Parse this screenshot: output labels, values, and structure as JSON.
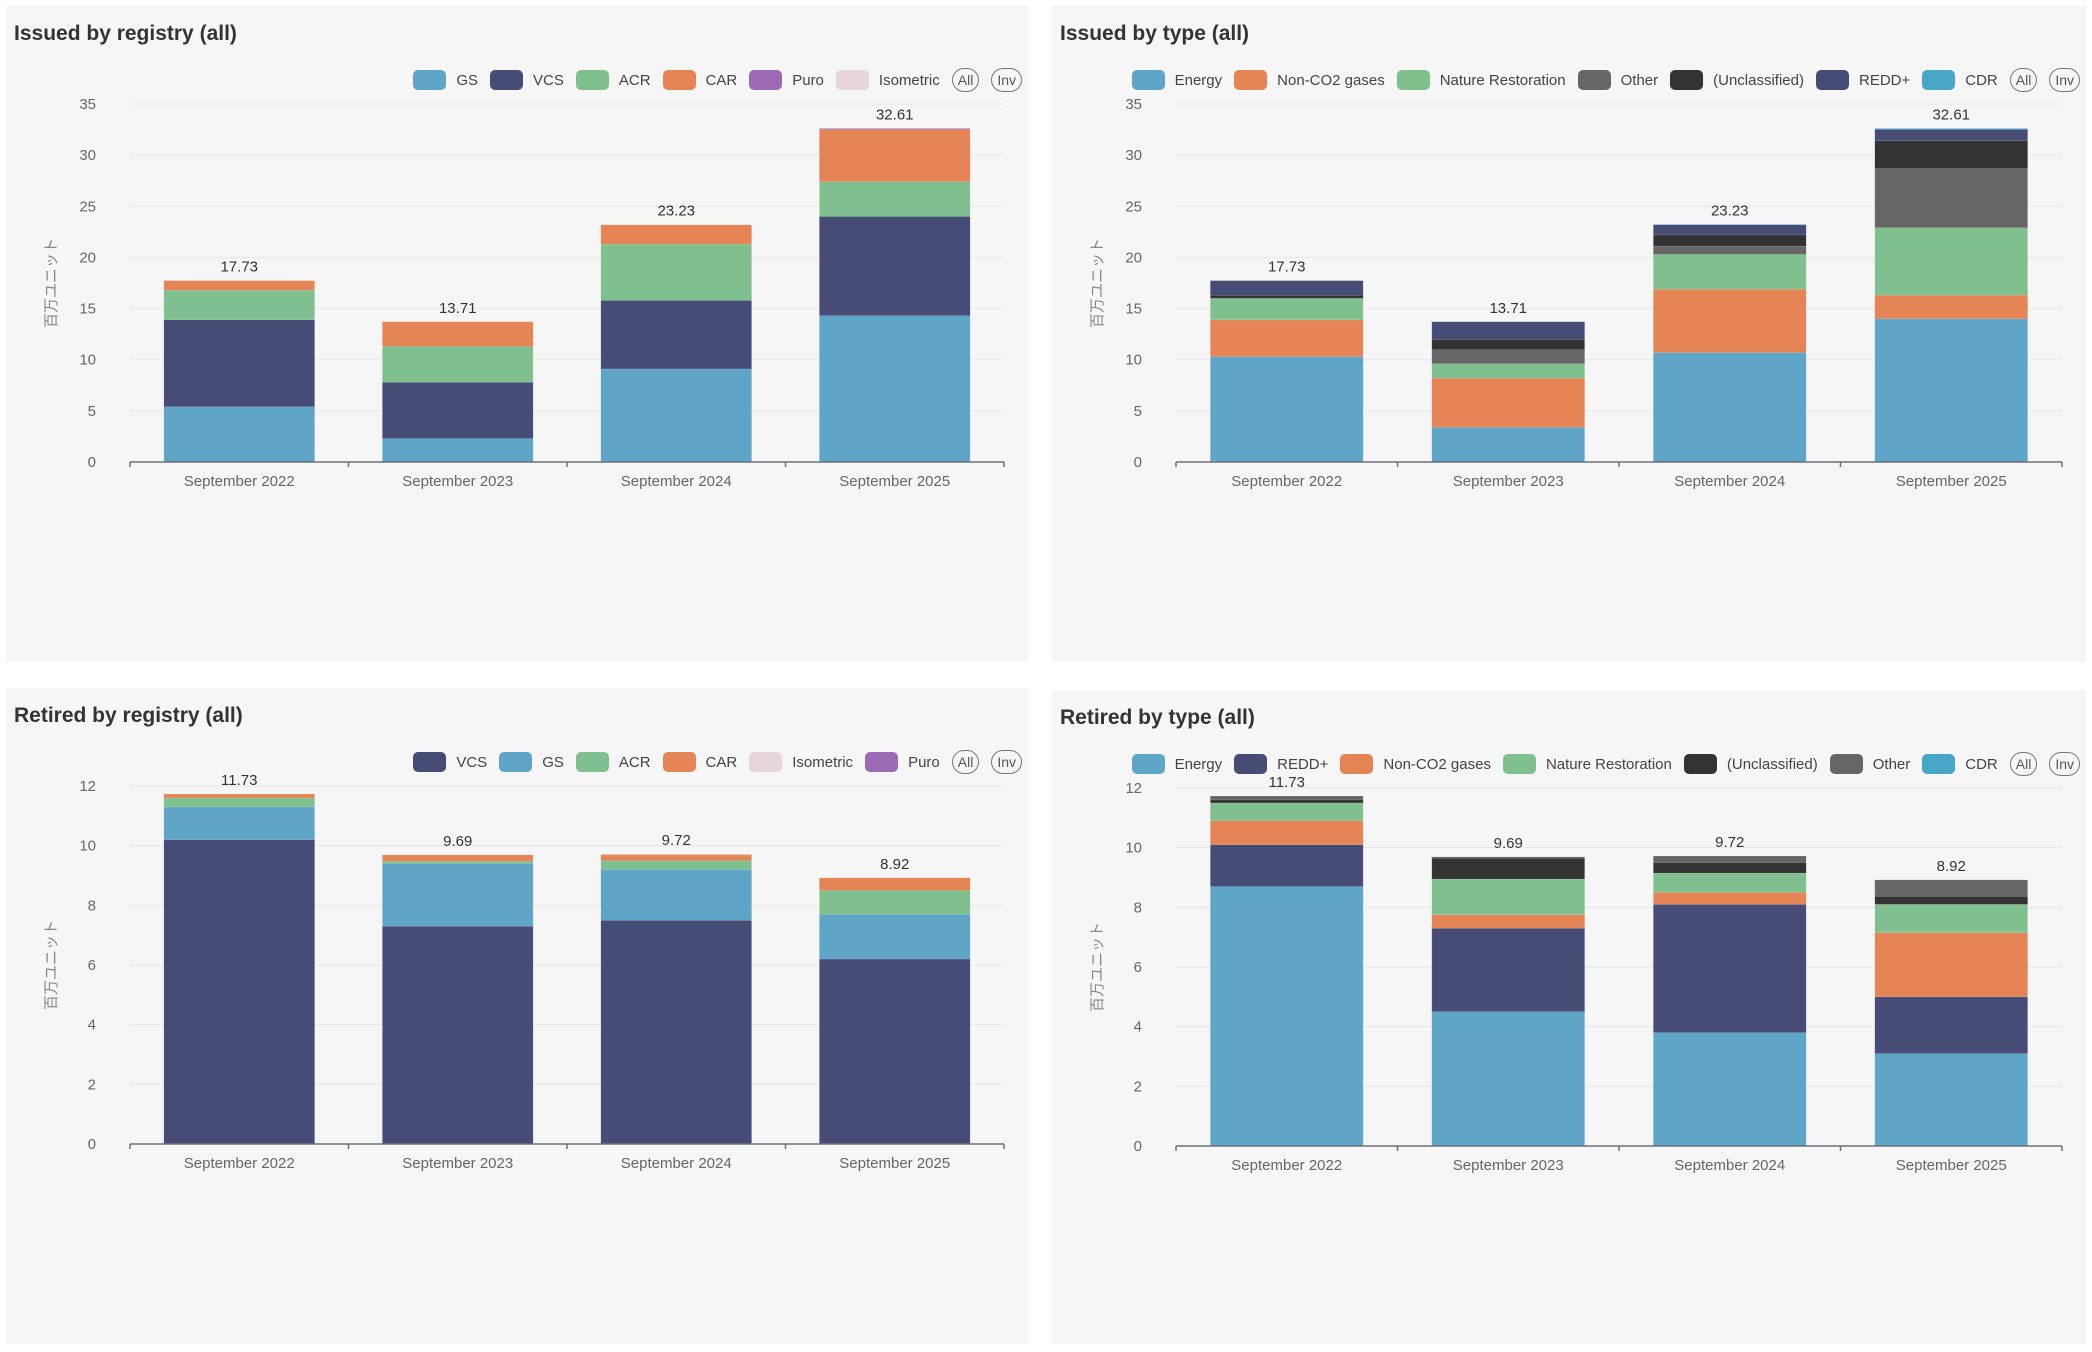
{
  "buttons": {
    "all": "All",
    "inv": "Inv"
  },
  "chart_data": [
    {
      "id": "issued-registry",
      "type": "bar",
      "stacked": true,
      "title": "Issued by registry (all)",
      "ylabel": "百万ユニット",
      "xlabel": "",
      "ylim": [
        0,
        35
      ],
      "yticks": [
        0,
        5,
        10,
        15,
        20,
        25,
        30,
        35
      ],
      "grid": true,
      "legend_position": "top-right",
      "categories": [
        "September 2022",
        "September 2023",
        "September 2024",
        "September 2025"
      ],
      "totals": [
        "17.73",
        "13.71",
        "23.23",
        "32.61"
      ],
      "series": [
        {
          "name": "GS",
          "color": "#5fa5c7",
          "values": [
            5.4,
            2.3,
            9.1,
            14.3
          ]
        },
        {
          "name": "VCS",
          "color": "#474c76",
          "values": [
            8.5,
            5.5,
            6.7,
            9.7
          ]
        },
        {
          "name": "ACR",
          "color": "#80c08f",
          "values": [
            2.9,
            3.5,
            5.5,
            3.4
          ]
        },
        {
          "name": "CAR",
          "color": "#e58455",
          "values": [
            0.93,
            2.41,
            1.88,
            5.11
          ]
        },
        {
          "name": "Puro",
          "color": "#9d6ab5",
          "values": [
            0,
            0,
            0,
            0.1
          ]
        },
        {
          "name": "Isometric",
          "color": "#e8d5d9",
          "values": [
            0,
            0,
            0.05,
            0
          ]
        }
      ]
    },
    {
      "id": "issued-type",
      "type": "bar",
      "stacked": true,
      "title": "Issued by type (all)",
      "ylabel": "百万ユニット",
      "xlabel": "",
      "ylim": [
        0,
        35
      ],
      "yticks": [
        0,
        5,
        10,
        15,
        20,
        25,
        30,
        35
      ],
      "grid": true,
      "legend_position": "top-right",
      "categories": [
        "September 2022",
        "September 2023",
        "September 2024",
        "September 2025"
      ],
      "totals": [
        "17.73",
        "13.71",
        "23.23",
        "32.61"
      ],
      "series": [
        {
          "name": "Energy",
          "color": "#5fa5c7",
          "values": [
            10.3,
            3.4,
            10.7,
            14.0
          ]
        },
        {
          "name": "Non-CO2 gases",
          "color": "#e58455",
          "values": [
            3.6,
            4.8,
            6.2,
            2.3
          ]
        },
        {
          "name": "Nature Restoration",
          "color": "#80c08f",
          "values": [
            2.1,
            1.4,
            3.4,
            6.6
          ]
        },
        {
          "name": "Other",
          "color": "#666666",
          "values": [
            0.0,
            1.4,
            0.8,
            5.8
          ]
        },
        {
          "name": "(Unclassified)",
          "color": "#333333",
          "values": [
            0.3,
            1.0,
            1.1,
            2.7
          ]
        },
        {
          "name": "REDD+",
          "color": "#474c76",
          "values": [
            1.43,
            1.71,
            1.0,
            1.11
          ]
        },
        {
          "name": "CDR",
          "color": "#4aa6c9",
          "values": [
            0,
            0,
            0.03,
            0.1
          ]
        }
      ]
    },
    {
      "id": "retired-registry",
      "type": "bar",
      "stacked": true,
      "title": "Retired by registry (all)",
      "ylabel": "百万ユニット",
      "xlabel": "",
      "ylim": [
        0,
        12
      ],
      "yticks": [
        0,
        2,
        4,
        6,
        8,
        10,
        12
      ],
      "grid": true,
      "legend_position": "top-right",
      "categories": [
        "September 2022",
        "September 2023",
        "September 2024",
        "September 2025"
      ],
      "totals": [
        "11.73",
        "9.69",
        "9.72",
        "8.92"
      ],
      "series": [
        {
          "name": "VCS",
          "color": "#474c76",
          "values": [
            10.2,
            7.3,
            7.5,
            6.2
          ]
        },
        {
          "name": "GS",
          "color": "#5fa5c7",
          "values": [
            1.1,
            2.1,
            1.7,
            1.5
          ]
        },
        {
          "name": "ACR",
          "color": "#80c08f",
          "values": [
            0.3,
            0.08,
            0.3,
            0.8
          ]
        },
        {
          "name": "CAR",
          "color": "#e58455",
          "values": [
            0.13,
            0.21,
            0.2,
            0.42
          ]
        },
        {
          "name": "Isometric",
          "color": "#e8d5d9",
          "values": [
            0,
            0,
            0.02,
            0
          ]
        },
        {
          "name": "Puro",
          "color": "#9d6ab5",
          "values": [
            0,
            0,
            0,
            0
          ]
        }
      ]
    },
    {
      "id": "retired-type",
      "type": "bar",
      "stacked": true,
      "title": "Retired by type (all)",
      "ylabel": "百万ユニット",
      "xlabel": "",
      "ylim": [
        0,
        12
      ],
      "yticks": [
        0,
        2,
        4,
        6,
        8,
        10,
        12
      ],
      "grid": true,
      "legend_position": "top-right",
      "categories": [
        "September 2022",
        "September 2023",
        "September 2024",
        "September 2025"
      ],
      "totals": [
        "11.73",
        "9.69",
        "9.72",
        "8.92"
      ],
      "series": [
        {
          "name": "Energy",
          "color": "#5fa5c7",
          "values": [
            8.7,
            4.5,
            3.8,
            3.1
          ]
        },
        {
          "name": "REDD+",
          "color": "#474c76",
          "values": [
            1.4,
            2.8,
            4.3,
            1.9
          ]
        },
        {
          "name": "Non-CO2 gases",
          "color": "#e58455",
          "values": [
            0.8,
            0.45,
            0.4,
            2.15
          ]
        },
        {
          "name": "Nature Restoration",
          "color": "#80c08f",
          "values": [
            0.6,
            1.2,
            0.65,
            0.95
          ]
        },
        {
          "name": "(Unclassified)",
          "color": "#333333",
          "values": [
            0.1,
            0.7,
            0.35,
            0.27
          ]
        },
        {
          "name": "Other",
          "color": "#666666",
          "values": [
            0.13,
            0.04,
            0.22,
            0.55
          ]
        },
        {
          "name": "CDR",
          "color": "#4aa6c9",
          "values": [
            0,
            0,
            0,
            0
          ]
        }
      ]
    }
  ]
}
